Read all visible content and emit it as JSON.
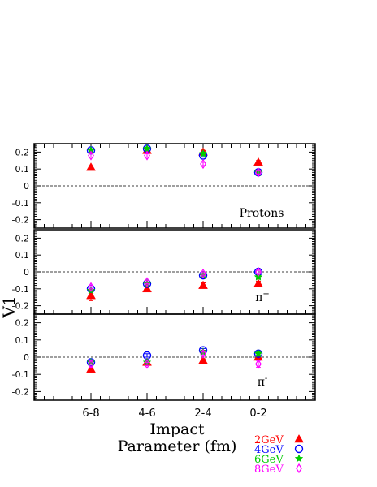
{
  "chart_data": {
    "type": "scatter",
    "ylabel": "V1",
    "xlabel_line1": "Impact",
    "xlabel_line2": "Parameter (fm)",
    "categories": [
      "6-8",
      "4-6",
      "2-4",
      "0-2"
    ],
    "ylim": [
      -0.25,
      0.25
    ],
    "yticks": [
      0.2,
      0.1,
      0,
      -0.1,
      -0.2
    ],
    "ytick_labels": [
      "0.2",
      "0.1",
      "0",
      "-0.1",
      "-0.2"
    ],
    "legend": [
      {
        "label": "2GeV",
        "color": "#ff0000",
        "marker": "triangle-filled"
      },
      {
        "label": "4GeV",
        "color": "#0000ff",
        "marker": "circle-open"
      },
      {
        "label": "6GeV",
        "color": "#00cc00",
        "marker": "star-filled"
      },
      {
        "label": "8GeV",
        "color": "#ff00ff",
        "marker": "diamond-open"
      }
    ],
    "panels": [
      {
        "label": "Protons",
        "series": [
          {
            "name": "2GeV",
            "values": [
              0.11,
              0.21,
              0.2,
              0.14
            ],
            "errors": [
              0.01,
              0.01,
              0.01,
              0.01
            ]
          },
          {
            "name": "4GeV",
            "values": [
              0.21,
              0.22,
              0.18,
              0.08
            ],
            "errors": [
              0.01,
              0.01,
              0.01,
              0.01
            ]
          },
          {
            "name": "6GeV",
            "values": [
              0.21,
              0.22,
              0.19,
              0.08
            ],
            "errors": [
              0.01,
              0.01,
              0.01,
              0.01
            ]
          },
          {
            "name": "8GeV",
            "values": [
              0.18,
              0.18,
              0.13,
              0.08
            ],
            "errors": [
              0.01,
              0.01,
              0.01,
              0.01
            ]
          }
        ]
      },
      {
        "label": "π+",
        "label_main": "π",
        "label_sup": "+",
        "series": [
          {
            "name": "2GeV",
            "values": [
              -0.14,
              -0.1,
              -0.08,
              -0.07
            ],
            "errors": [
              0.03,
              0.015,
              0.015,
              0.015
            ]
          },
          {
            "name": "4GeV",
            "values": [
              -0.1,
              -0.07,
              -0.02,
              0.0
            ],
            "errors": [
              0.01,
              0.01,
              0.01,
              0.01
            ]
          },
          {
            "name": "6GeV",
            "values": [
              -0.11,
              -0.07,
              -0.02,
              -0.03
            ],
            "errors": [
              0.01,
              0.01,
              0.01,
              0.01
            ]
          },
          {
            "name": "8GeV",
            "values": [
              -0.09,
              -0.06,
              -0.01,
              0.0
            ],
            "errors": [
              0.01,
              0.01,
              0.01,
              0.01
            ]
          }
        ]
      },
      {
        "label": "π-",
        "label_main": "π",
        "label_sup": "-",
        "series": [
          {
            "name": "2GeV",
            "values": [
              -0.07,
              -0.03,
              -0.02,
              0.0
            ],
            "errors": [
              0.01,
              0.01,
              0.01,
              0.01
            ]
          },
          {
            "name": "4GeV",
            "values": [
              -0.03,
              0.01,
              0.04,
              0.02
            ],
            "errors": [
              0.01,
              0.01,
              0.01,
              0.01
            ]
          },
          {
            "name": "6GeV",
            "values": [
              -0.03,
              -0.03,
              0.03,
              0.02
            ],
            "errors": [
              0.01,
              0.01,
              0.01,
              0.01
            ]
          },
          {
            "name": "8GeV",
            "values": [
              -0.04,
              -0.04,
              0.02,
              -0.04
            ],
            "errors": [
              0.02,
              0.01,
              0.01,
              0.02
            ]
          }
        ]
      }
    ]
  }
}
